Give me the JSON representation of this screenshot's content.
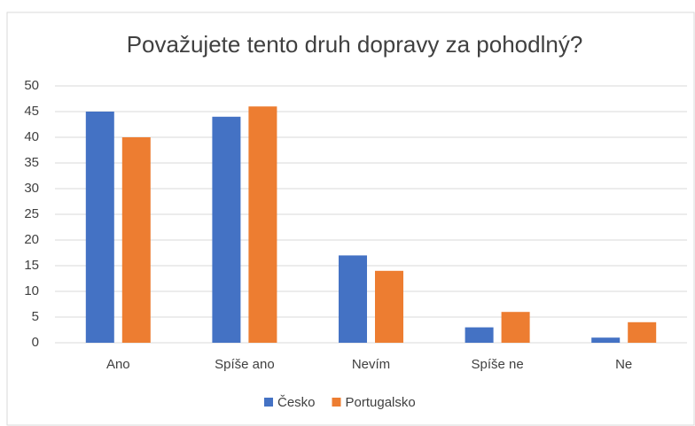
{
  "chart_data": {
    "type": "bar",
    "title": "Považujete tento druh dopravy za pohodlný?",
    "categories": [
      "Ano",
      "Spíše ano",
      "Nevím",
      "Spíše ne",
      "Ne"
    ],
    "series": [
      {
        "name": "Česko",
        "color": "#4472c4",
        "values": [
          45,
          44,
          17,
          3,
          1
        ]
      },
      {
        "name": "Portugalsko",
        "color": "#ed7d31",
        "values": [
          40,
          46,
          14,
          6,
          4
        ]
      }
    ],
    "ylim": [
      0,
      50
    ],
    "yticks": [
      0,
      5,
      10,
      15,
      20,
      25,
      30,
      35,
      40,
      45,
      50
    ],
    "grid": true,
    "legend": "bottom"
  }
}
